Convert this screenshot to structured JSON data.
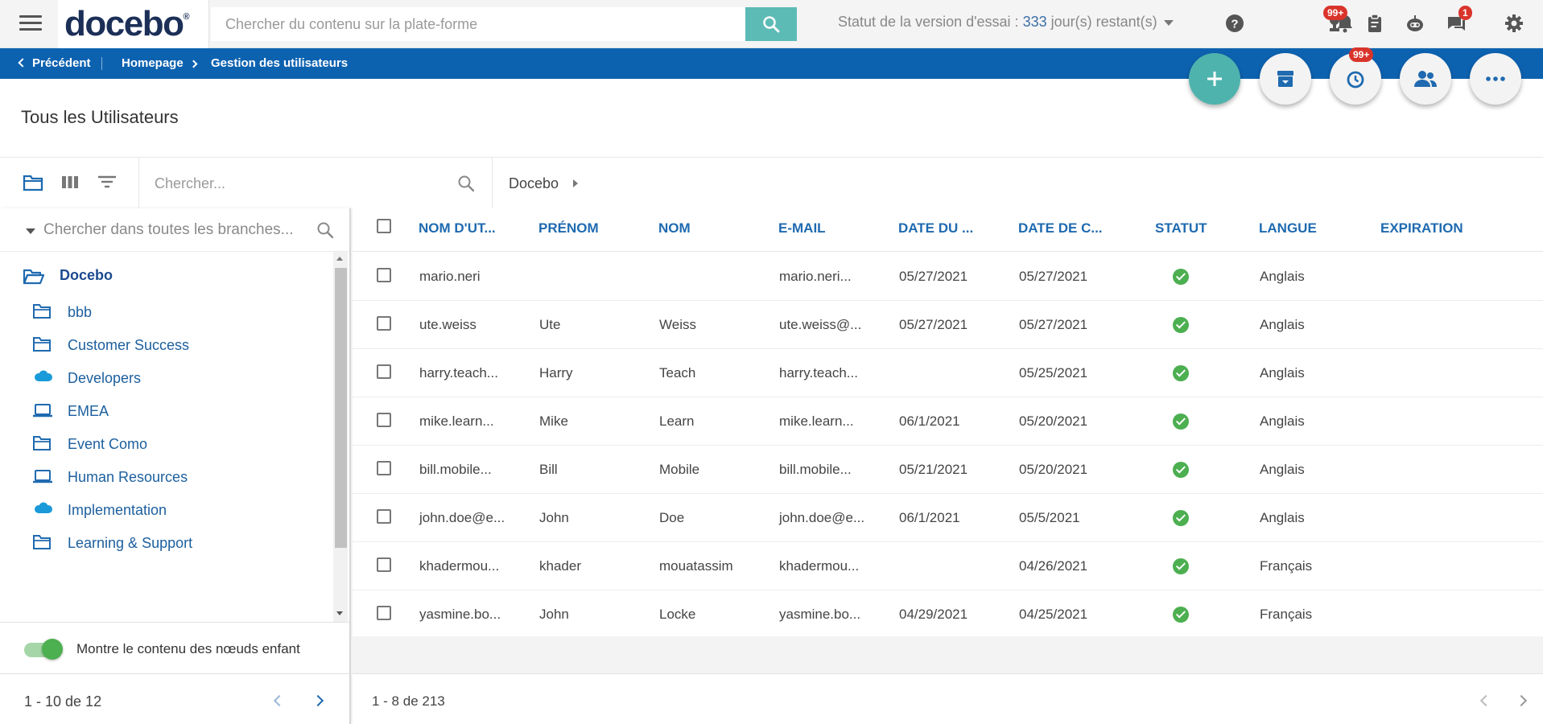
{
  "header": {
    "logo": "docebo",
    "search_placeholder": "Chercher du contenu sur la plate-forme",
    "trial_prefix": "Statut de la version d'essai : ",
    "trial_days": "333",
    "trial_suffix": " jour(s) restant(s)",
    "notifications_badge": "99+",
    "messages_badge": "1",
    "icons": [
      "menu-icon",
      "search-icon",
      "help-icon",
      "trophy-icon",
      "bell-icon",
      "clipboard-icon",
      "bot-icon",
      "chat-icon",
      "gear-icon"
    ]
  },
  "breadcrumb": {
    "back": "Précédent",
    "home": "Homepage",
    "current": "Gestion des utilisateurs"
  },
  "actions": {
    "history_badge": "99+",
    "icons": [
      "plus-icon",
      "archive-icon",
      "history-icon",
      "users-icon",
      "more-icon"
    ]
  },
  "page": {
    "title": "Tous les Utilisateurs"
  },
  "toolbar": {
    "search_placeholder": "Chercher...",
    "branch": "Docebo"
  },
  "tree": {
    "search_placeholder": "Chercher dans toutes les branches...",
    "root": "Docebo",
    "items": [
      {
        "label": "bbb",
        "icon": "folder-icon"
      },
      {
        "label": "Customer Success",
        "icon": "folder-icon"
      },
      {
        "label": "Developers",
        "icon": "salesforce-cloud-icon"
      },
      {
        "label": "EMEA",
        "icon": "laptop-icon"
      },
      {
        "label": "Event Como",
        "icon": "folder-icon"
      },
      {
        "label": "Human Resources",
        "icon": "laptop-icon"
      },
      {
        "label": "Implementation",
        "icon": "salesforce-cloud-icon"
      },
      {
        "label": "Learning & Support",
        "icon": "folder-icon"
      }
    ],
    "toggle_label": "Montre le contenu des nœuds enfant",
    "toggle_on": true,
    "pager": "1 - 10 de 12"
  },
  "table": {
    "columns": [
      "NOM D'UT...",
      "PRÉNOM",
      "NOM",
      "E-MAIL",
      "DATE DU ...",
      "DATE DE C...",
      "STATUT",
      "LANGUE",
      "EXPIRATION"
    ],
    "rows": [
      {
        "username": "mario.neri",
        "first": "",
        "last": "",
        "email": "mario.neri...",
        "date1": "05/27/2021",
        "date2": "05/27/2021",
        "status": "active",
        "lang": "Anglais",
        "expiration": ""
      },
      {
        "username": "ute.weiss",
        "first": "Ute",
        "last": "Weiss",
        "email": "ute.weiss@...",
        "date1": "05/27/2021",
        "date2": "05/27/2021",
        "status": "active",
        "lang": "Anglais",
        "expiration": ""
      },
      {
        "username": "harry.teach...",
        "first": "Harry",
        "last": "Teach",
        "email": "harry.teach...",
        "date1": "",
        "date2": "05/25/2021",
        "status": "active",
        "lang": "Anglais",
        "expiration": ""
      },
      {
        "username": "mike.learn...",
        "first": "Mike",
        "last": "Learn",
        "email": "mike.learn...",
        "date1": "06/1/2021",
        "date2": "05/20/2021",
        "status": "active",
        "lang": "Anglais",
        "expiration": ""
      },
      {
        "username": "bill.mobile...",
        "first": "Bill",
        "last": "Mobile",
        "email": "bill.mobile...",
        "date1": "05/21/2021",
        "date2": "05/20/2021",
        "status": "active",
        "lang": "Anglais",
        "expiration": ""
      },
      {
        "username": "john.doe@e...",
        "first": "John",
        "last": "Doe",
        "email": "john.doe@e...",
        "date1": "06/1/2021",
        "date2": "05/5/2021",
        "status": "active",
        "lang": "Anglais",
        "expiration": ""
      },
      {
        "username": "khadermou...",
        "first": "khader",
        "last": "mouatassim",
        "email": "khadermou...",
        "date1": "",
        "date2": "04/26/2021",
        "status": "active",
        "lang": "Français",
        "expiration": ""
      },
      {
        "username": "yasmine.bo...",
        "first": "John",
        "last": "Locke",
        "email": "yasmine.bo...",
        "date1": "04/29/2021",
        "date2": "04/25/2021",
        "status": "active",
        "lang": "Français",
        "expiration": ""
      }
    ],
    "pager": "1 - 8 de 213"
  },
  "colors": {
    "brand_blue": "#0d62b0",
    "teal": "#5dbbb6",
    "link_blue": "#1f6ab0",
    "status_green": "#4caf50",
    "badge_red": "#d9342b"
  }
}
